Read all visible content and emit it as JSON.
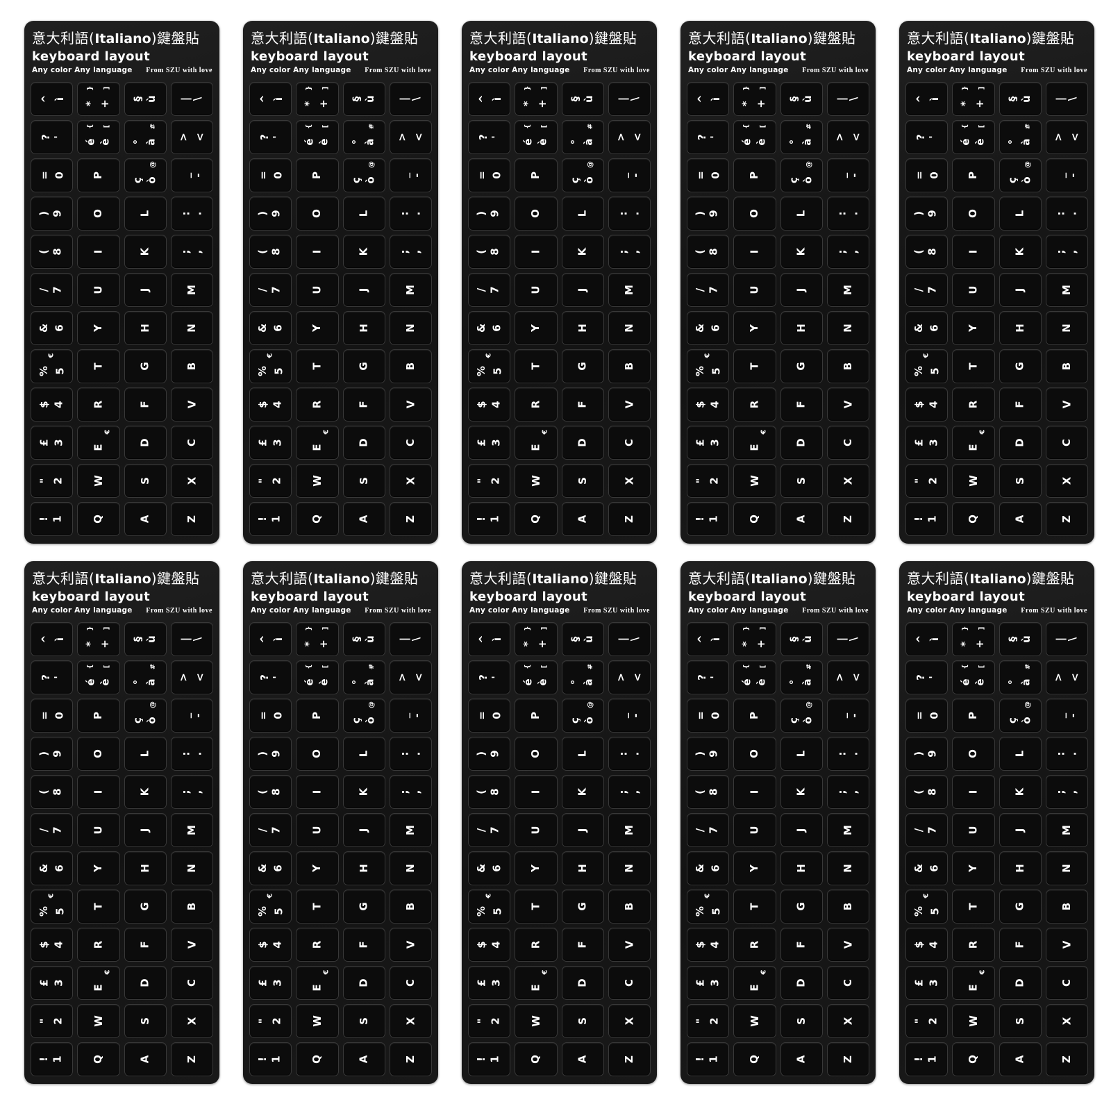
{
  "product": {
    "count": 10,
    "grid_rows": 2,
    "grid_cols": 5,
    "description": "Italian keyboard layout sticker sheets, white letters on black"
  },
  "colors": {
    "page_bg": "#ffffff",
    "sheet_bg": "#171717",
    "key_bg": "#0c0c0c",
    "key_border": "#383838",
    "legend_text": "#ffffff"
  },
  "sheet": {
    "header": {
      "title_prefix": "意大利語(",
      "title_latin": "Italiano",
      "title_suffix": ")鍵盤貼",
      "subtitle": "keyboard layout",
      "tagline_left": "Any color Any language",
      "tagline_right": "From SZU with love"
    },
    "keys": [
      {
        "id": "key-i-grave",
        "legends": [
          "^",
          "ì"
        ]
      },
      {
        "id": "key-plus",
        "legends": [
          "*",
          "+"
        ],
        "alt": [
          "}",
          "]"
        ],
        "altpos": "center"
      },
      {
        "id": "key-u-grave",
        "legends": [
          "§",
          "ù"
        ]
      },
      {
        "id": "key-backslash",
        "legends": [
          "|",
          "\\"
        ]
      },
      {
        "id": "key-apostrophe",
        "legends": [
          "?",
          "'"
        ]
      },
      {
        "id": "key-e-grave",
        "legends": [
          "é",
          "è"
        ],
        "alt": [
          "{",
          "["
        ],
        "altpos": "center"
      },
      {
        "id": "key-a-grave",
        "legends": [
          "°",
          "à"
        ],
        "alt": [
          "#"
        ],
        "altpos": "right"
      },
      {
        "id": "key-less-than",
        "legends": [
          ">",
          "<"
        ]
      },
      {
        "id": "key-0",
        "legends": [
          "=",
          "0"
        ]
      },
      {
        "id": "key-p",
        "legends": [
          "P"
        ]
      },
      {
        "id": "key-o-grave",
        "legends": [
          "ç",
          "ò"
        ],
        "alt": [
          "@"
        ],
        "altpos": "right"
      },
      {
        "id": "key-minus",
        "legends": [
          "_",
          "-"
        ]
      },
      {
        "id": "key-9",
        "legends": [
          ")",
          "9"
        ]
      },
      {
        "id": "key-o",
        "legends": [
          "O"
        ]
      },
      {
        "id": "key-l",
        "legends": [
          "L"
        ]
      },
      {
        "id": "key-period",
        "legends": [
          ":",
          "."
        ]
      },
      {
        "id": "key-8",
        "legends": [
          "(",
          "8"
        ]
      },
      {
        "id": "key-i",
        "legends": [
          "I"
        ]
      },
      {
        "id": "key-k",
        "legends": [
          "K"
        ]
      },
      {
        "id": "key-comma",
        "legends": [
          ";",
          ","
        ]
      },
      {
        "id": "key-7",
        "legends": [
          "/",
          "7"
        ]
      },
      {
        "id": "key-u",
        "legends": [
          "U"
        ]
      },
      {
        "id": "key-j",
        "legends": [
          "J"
        ]
      },
      {
        "id": "key-m",
        "legends": [
          "M"
        ]
      },
      {
        "id": "key-6",
        "legends": [
          "&",
          "6"
        ]
      },
      {
        "id": "key-y",
        "legends": [
          "Y"
        ]
      },
      {
        "id": "key-h",
        "legends": [
          "H"
        ]
      },
      {
        "id": "key-n",
        "legends": [
          "N"
        ]
      },
      {
        "id": "key-5",
        "legends": [
          "%",
          "5"
        ],
        "alt": [
          "€"
        ],
        "altpos": "center"
      },
      {
        "id": "key-t",
        "legends": [
          "T"
        ]
      },
      {
        "id": "key-g",
        "legends": [
          "G"
        ]
      },
      {
        "id": "key-b",
        "legends": [
          "B"
        ]
      },
      {
        "id": "key-4",
        "legends": [
          "$",
          "4"
        ]
      },
      {
        "id": "key-r",
        "legends": [
          "R"
        ]
      },
      {
        "id": "key-f",
        "legends": [
          "F"
        ]
      },
      {
        "id": "key-v",
        "legends": [
          "V"
        ]
      },
      {
        "id": "key-3",
        "legends": [
          "£",
          "3"
        ]
      },
      {
        "id": "key-e",
        "legends": [
          "E"
        ],
        "alt": [
          "€"
        ],
        "altpos": "right"
      },
      {
        "id": "key-d",
        "legends": [
          "D"
        ]
      },
      {
        "id": "key-c",
        "legends": [
          "C"
        ]
      },
      {
        "id": "key-2",
        "legends": [
          "\"",
          "2"
        ]
      },
      {
        "id": "key-w",
        "legends": [
          "W"
        ]
      },
      {
        "id": "key-s",
        "legends": [
          "S"
        ]
      },
      {
        "id": "key-x",
        "legends": [
          "X"
        ]
      },
      {
        "id": "key-1",
        "legends": [
          "!",
          "1"
        ]
      },
      {
        "id": "key-q",
        "legends": [
          "Q"
        ]
      },
      {
        "id": "key-a",
        "legends": [
          "A"
        ]
      },
      {
        "id": "key-z",
        "legends": [
          "Z"
        ]
      }
    ]
  }
}
